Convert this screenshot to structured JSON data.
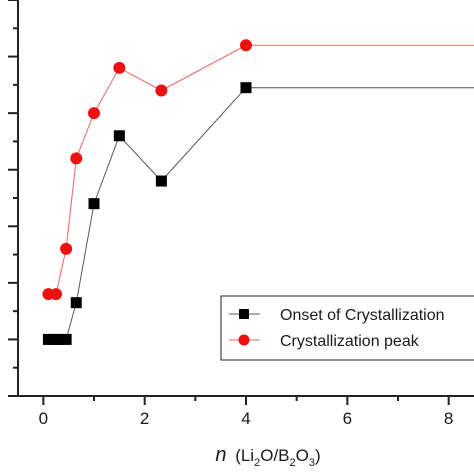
{
  "chart_data": {
    "type": "line",
    "title": "",
    "xlabel": "n (Li2O/B2O3)",
    "xlabel_parts": {
      "variable": "n",
      "open": "(Li",
      "sub1": "2",
      "mid": "O/B",
      "sub2": "2",
      "mid2": "O",
      "sub3": "3",
      "close": ")"
    },
    "ylabel": "",
    "xlim": [
      -0.5,
      8.5
    ],
    "ylim": [
      0,
      7
    ],
    "x_ticks": [
      "0",
      "2",
      "4",
      "6",
      "8"
    ],
    "grid": false,
    "legend_position": "bottom-right",
    "series": [
      {
        "name": "Onset of Crystallization",
        "marker": "square",
        "marker_color": "#000000",
        "line_color": "#555555",
        "x": [
          0.1,
          0.2,
          0.3,
          0.45,
          0.65,
          1.0,
          1.5,
          2.33,
          4.0,
          9.0
        ],
        "y": [
          1.0,
          1.0,
          1.0,
          1.0,
          1.65,
          3.4,
          4.6,
          3.8,
          5.45,
          5.45
        ]
      },
      {
        "name": "Crystallization peak",
        "marker": "circle",
        "marker_color": "#ee1111",
        "line_color": "#ee6666",
        "x": [
          0.1,
          0.25,
          0.45,
          0.65,
          1.0,
          1.5,
          2.33,
          4.0,
          9.0
        ],
        "y": [
          1.8,
          1.8,
          2.6,
          4.2,
          5.0,
          5.8,
          5.4,
          6.2,
          6.2
        ]
      }
    ]
  }
}
